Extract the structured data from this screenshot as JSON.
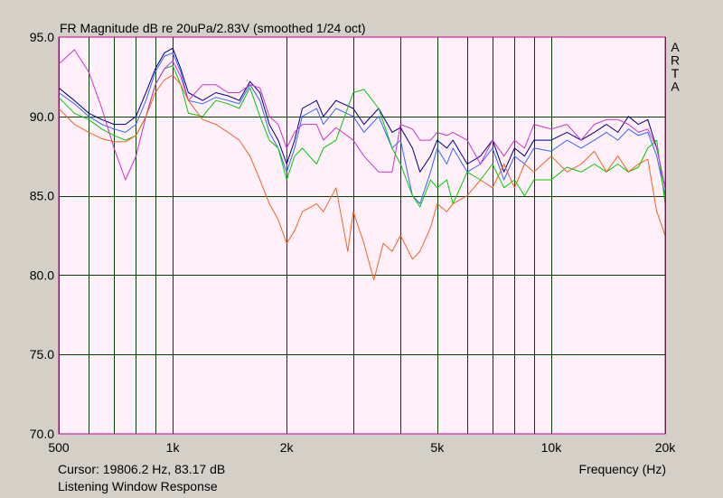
{
  "window": {
    "background": "#d4d0c8",
    "plot_background": "#fff0fa"
  },
  "chart_data": {
    "type": "line",
    "title": "FR Magnitude dB re 20uPa/2.83V (smoothed 1/24 oct)",
    "xlabel": "Frequency (Hz)",
    "ylabel": "",
    "x_scale": "log",
    "xlim": [
      500,
      20000
    ],
    "ylim": [
      70,
      95
    ],
    "y_ticks": [
      70,
      75,
      80,
      85,
      90,
      95
    ],
    "y_tick_labels": [
      "70.0",
      "75.0",
      "80.0",
      "85.0",
      "90.0",
      "95.0"
    ],
    "x_ticks": [
      500,
      1000,
      2000,
      5000,
      10000,
      20000
    ],
    "x_tick_labels": [
      "500",
      "1k",
      "2k",
      "5k",
      "10k",
      "20k"
    ],
    "x_grid": [
      500,
      600,
      700,
      800,
      900,
      1000,
      2000,
      3000,
      4000,
      5000,
      6000,
      7000,
      8000,
      9000,
      10000,
      20000
    ],
    "y_grid": [
      75,
      80,
      85,
      90
    ],
    "grid": true,
    "grid_color": "#004000",
    "frame_color": "#cc0099",
    "brand_letters": [
      "A",
      "R",
      "T",
      "A"
    ],
    "cursor_text": "Cursor: 19806.2 Hz, 83.17 dB",
    "footer_text": "Listening Window Response",
    "series": [
      {
        "color": "#000080",
        "x": [
          500,
          550,
          600,
          650,
          700,
          750,
          800,
          850,
          900,
          950,
          1000,
          1050,
          1100,
          1200,
          1300,
          1400,
          1500,
          1600,
          1700,
          1800,
          1900,
          2000,
          2100,
          2200,
          2400,
          2500,
          2700,
          3000,
          3200,
          3500,
          3800,
          4000,
          4300,
          4500,
          4800,
          5000,
          5300,
          5500,
          6000,
          6500,
          7000,
          7500,
          8000,
          8500,
          9000,
          10000,
          11000,
          12000,
          13000,
          14000,
          15000,
          16000,
          17000,
          18000,
          19000,
          20000
        ],
        "y": [
          91.8,
          91.0,
          90.2,
          89.8,
          89.5,
          89.5,
          90.0,
          91.5,
          93.0,
          94.0,
          94.3,
          93.0,
          91.5,
          91.0,
          91.5,
          91.3,
          91.0,
          92.2,
          91.5,
          89.5,
          88.5,
          87.0,
          88.5,
          90.5,
          91.0,
          90.0,
          91.0,
          90.5,
          89.5,
          90.5,
          89.0,
          89.3,
          88.0,
          86.5,
          87.5,
          88.5,
          88.0,
          88.5,
          87.0,
          87.5,
          88.5,
          86.5,
          88.0,
          87.5,
          88.5,
          88.5,
          89.0,
          88.5,
          89.0,
          89.5,
          89.0,
          90.0,
          89.5,
          89.8,
          88.0,
          85.5
        ]
      },
      {
        "color": "#3366ff",
        "x": [
          500,
          550,
          600,
          650,
          700,
          750,
          800,
          850,
          900,
          950,
          1000,
          1050,
          1100,
          1200,
          1300,
          1400,
          1500,
          1600,
          1700,
          1800,
          1900,
          2000,
          2100,
          2200,
          2400,
          2500,
          2700,
          3000,
          3200,
          3500,
          3800,
          4000,
          4300,
          4500,
          4800,
          5000,
          5300,
          5500,
          6000,
          6500,
          7000,
          7500,
          8000,
          8500,
          9000,
          10000,
          11000,
          12000,
          13000,
          14000,
          15000,
          16000,
          17000,
          18000,
          19000,
          20000
        ],
        "y": [
          91.5,
          90.8,
          90.0,
          89.5,
          89.2,
          89.0,
          89.5,
          91.0,
          92.8,
          93.8,
          94.0,
          92.8,
          91.0,
          90.8,
          91.2,
          91.0,
          90.8,
          92.0,
          91.0,
          89.0,
          88.0,
          86.5,
          88.0,
          90.0,
          90.5,
          89.5,
          90.5,
          90.0,
          89.0,
          90.0,
          88.0,
          88.5,
          85.0,
          84.5,
          86.5,
          88.0,
          87.0,
          88.0,
          86.5,
          87.0,
          88.0,
          86.0,
          87.5,
          87.0,
          88.0,
          87.8,
          88.5,
          88.0,
          88.5,
          89.0,
          88.5,
          89.2,
          88.8,
          89.0,
          87.5,
          85.0
        ]
      },
      {
        "color": "#00cc00",
        "x": [
          500,
          550,
          600,
          650,
          700,
          750,
          800,
          850,
          900,
          950,
          1000,
          1050,
          1100,
          1200,
          1300,
          1400,
          1500,
          1600,
          1700,
          1800,
          1900,
          2000,
          2100,
          2200,
          2400,
          2500,
          2700,
          3000,
          3200,
          3500,
          3800,
          4000,
          4300,
          4500,
          4800,
          5000,
          5300,
          5500,
          6000,
          6500,
          7000,
          7500,
          8000,
          8500,
          9000,
          10000,
          11000,
          12000,
          13000,
          14000,
          15000,
          16000,
          17000,
          18000,
          19000,
          20000
        ],
        "y": [
          91.2,
          90.2,
          89.8,
          89.2,
          88.8,
          88.5,
          88.8,
          90.0,
          92.0,
          93.0,
          93.2,
          92.0,
          90.2,
          90.0,
          91.0,
          90.8,
          90.5,
          91.8,
          90.0,
          88.5,
          88.0,
          86.0,
          87.5,
          88.0,
          87.0,
          88.0,
          88.5,
          91.5,
          91.7,
          90.5,
          88.0,
          87.0,
          85.0,
          84.3,
          86.0,
          85.5,
          86.0,
          84.5,
          86.5,
          86.0,
          87.0,
          85.5,
          86.0,
          85.0,
          86.0,
          86.0,
          86.8,
          86.5,
          87.0,
          86.5,
          87.0,
          86.5,
          86.8,
          88.0,
          88.5,
          84.5
        ]
      },
      {
        "color": "#cc33cc",
        "x": [
          500,
          550,
          600,
          650,
          700,
          750,
          800,
          850,
          900,
          950,
          1000,
          1050,
          1100,
          1200,
          1300,
          1400,
          1500,
          1600,
          1700,
          1800,
          1900,
          2000,
          2100,
          2200,
          2400,
          2500,
          2700,
          3000,
          3200,
          3500,
          3800,
          4000,
          4300,
          4500,
          4800,
          5000,
          5300,
          5500,
          6000,
          6500,
          7000,
          7500,
          8000,
          8500,
          9000,
          10000,
          11000,
          12000,
          13000,
          14000,
          15000,
          16000,
          17000,
          18000,
          19000,
          20000
        ],
        "y": [
          93.3,
          94.2,
          92.8,
          90.5,
          88.0,
          86.0,
          87.5,
          90.0,
          92.0,
          93.0,
          93.5,
          92.5,
          91.0,
          92.0,
          92.0,
          91.5,
          91.5,
          92.0,
          91.8,
          90.0,
          89.5,
          88.0,
          89.0,
          89.5,
          89.5,
          88.5,
          89.3,
          88.5,
          87.5,
          86.5,
          86.5,
          89.5,
          89.2,
          88.5,
          88.5,
          89.0,
          88.8,
          89.0,
          88.5,
          87.0,
          88.5,
          87.5,
          88.5,
          88.0,
          89.5,
          89.2,
          89.5,
          88.5,
          89.5,
          89.8,
          89.8,
          89.5,
          89.0,
          89.2,
          88.0,
          85.5
        ]
      },
      {
        "color": "#ee6622",
        "x": [
          500,
          550,
          600,
          650,
          700,
          750,
          800,
          850,
          900,
          950,
          1000,
          1050,
          1100,
          1200,
          1300,
          1400,
          1500,
          1600,
          1700,
          1800,
          1900,
          2000,
          2100,
          2200,
          2400,
          2500,
          2700,
          2900,
          3000,
          3200,
          3400,
          3600,
          3800,
          4000,
          4300,
          4500,
          4800,
          5000,
          5300,
          5500,
          6000,
          6500,
          7000,
          7500,
          8000,
          8500,
          9000,
          10000,
          11000,
          12000,
          13000,
          14000,
          15000,
          16000,
          17000,
          18000,
          19000,
          20000
        ],
        "y": [
          90.5,
          89.5,
          89.0,
          88.6,
          88.4,
          88.4,
          88.8,
          90.0,
          91.5,
          92.3,
          92.6,
          92.0,
          91.0,
          89.8,
          89.5,
          89.0,
          88.5,
          87.5,
          86.0,
          84.5,
          83.5,
          82.0,
          82.8,
          84.0,
          84.5,
          84.0,
          85.5,
          81.5,
          84.0,
          82.0,
          79.7,
          82.0,
          81.5,
          82.5,
          81.0,
          81.5,
          83.0,
          84.5,
          84.0,
          84.5,
          85.0,
          86.0,
          85.5,
          87.0,
          85.5,
          87.0,
          86.5,
          87.5,
          86.5,
          87.0,
          87.8,
          86.5,
          87.5,
          86.5,
          87.0,
          87.3,
          84.0,
          82.5
        ]
      }
    ]
  }
}
